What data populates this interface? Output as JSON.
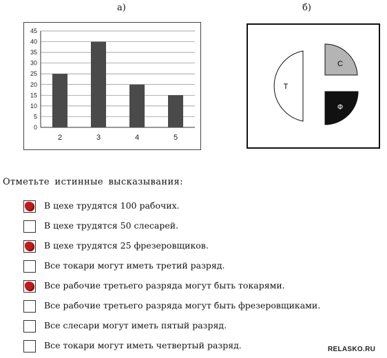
{
  "panel_a_label": "а)",
  "panel_b_label": "б)",
  "chart_data": {
    "type": "bar",
    "categories": [
      "2",
      "3",
      "4",
      "5"
    ],
    "values": [
      25,
      40,
      20,
      15
    ],
    "ylim": [
      0,
      45
    ],
    "yticks": [
      "0",
      "5",
      "10",
      "15",
      "20",
      "25",
      "30",
      "35",
      "40",
      "45"
    ],
    "grid": true,
    "bar_color": "#4a4a4a"
  },
  "diagram": {
    "shapes": [
      {
        "label": "Т",
        "fill": "#ffffff"
      },
      {
        "label": "С",
        "fill": "#b4b4b4"
      },
      {
        "label": "Ф",
        "fill": "#111111"
      }
    ]
  },
  "question": "Отметьте истинные высказывания:",
  "options": [
    {
      "text": "В цехе трудятся 100 рабочих.",
      "checked": true
    },
    {
      "text": "В цехе трудятся 50 слесарей.",
      "checked": false
    },
    {
      "text": "В цехе трудятся 25 фрезеровщиков.",
      "checked": true
    },
    {
      "text": "Все токари могут иметь третий разряд.",
      "checked": false
    },
    {
      "text": "Все рабочие третьего разряда могут быть токарями.",
      "checked": true
    },
    {
      "text": "Все рабочие третьего разряда могут быть фрезеровщиками.",
      "checked": false
    },
    {
      "text": "Все слесари могут иметь пятый разряд.",
      "checked": false
    },
    {
      "text": "Все токари могут иметь четвертый разряд.",
      "checked": false
    }
  ],
  "watermark": "RELASKO.RU",
  "colors": {
    "checked": "#c21a1a"
  }
}
